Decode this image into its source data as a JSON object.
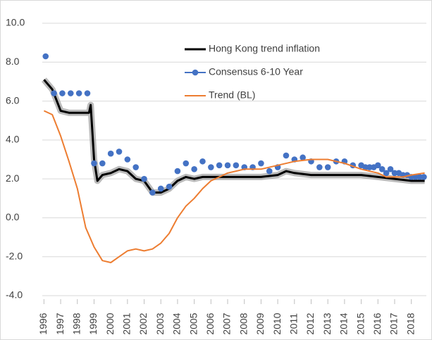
{
  "chart_data": {
    "type": "line",
    "xlim": [
      1995.9,
      2018.9
    ],
    "xticks": [
      1996,
      1997,
      1998,
      1999,
      2000,
      2001,
      2002,
      2003,
      2004,
      2005,
      2006,
      2007,
      2008,
      2009,
      2010,
      2011,
      2012,
      2013,
      2014,
      2015,
      2016,
      2017,
      2018
    ],
    "ylim": [
      -4,
      10
    ],
    "yticks": [
      {
        "value": 10,
        "label": "10.0"
      },
      {
        "value": 8,
        "label": "8.0"
      },
      {
        "value": 6,
        "label": "6.0"
      },
      {
        "value": 4,
        "label": "4.0"
      },
      {
        "value": 2,
        "label": "2.0"
      },
      {
        "value": 0,
        "label": "0.0"
      },
      {
        "value": -2,
        "label": "-2.0"
      },
      {
        "value": -4,
        "label": "-4.0"
      }
    ],
    "grid": true,
    "legend": "top",
    "series": [
      {
        "name": "Hong Kong trend inflation",
        "color": "#000000",
        "band": "#aaaaaa",
        "mode": "line",
        "x": [
          1996,
          1996.5,
          1997,
          1997.5,
          1998,
          1998.7,
          1998.8,
          1999,
          1999.2,
          1999.5,
          2000,
          2000.5,
          2001,
          2001.5,
          2002,
          2002.5,
          2003,
          2003.5,
          2004,
          2004.5,
          2005,
          2005.5,
          2006,
          2007,
          2008,
          2009,
          2010,
          2010.5,
          2011,
          2012,
          2013,
          2014,
          2015,
          2016,
          2017,
          2018,
          2018.8
        ],
        "values": [
          7.1,
          6.6,
          5.5,
          5.4,
          5.4,
          5.4,
          5.8,
          3.0,
          1.9,
          2.2,
          2.3,
          2.5,
          2.4,
          2.0,
          1.9,
          1.3,
          1.3,
          1.5,
          1.9,
          2.1,
          2.0,
          2.1,
          2.1,
          2.1,
          2.1,
          2.1,
          2.2,
          2.4,
          2.3,
          2.2,
          2.2,
          2.2,
          2.2,
          2.1,
          2.0,
          1.9,
          1.9
        ]
      },
      {
        "name": "Consensus 6-10 Year",
        "color": "#4472c4",
        "mode": "markers",
        "x": [
          1996.1,
          1996.6,
          1997.1,
          1997.6,
          1998.1,
          1998.6,
          1999,
          1999.5,
          2000,
          2000.5,
          2001,
          2001.5,
          2002,
          2002.5,
          2003,
          2003.5,
          2004,
          2004.5,
          2005,
          2005.5,
          2006,
          2006.5,
          2007,
          2007.5,
          2008,
          2008.5,
          2009,
          2009.5,
          2010,
          2010.5,
          2011,
          2011.5,
          2012,
          2012.5,
          2013,
          2013.5,
          2014,
          2014.5,
          2015,
          2015.25,
          2015.5,
          2015.75,
          2016,
          2016.25,
          2016.5,
          2016.75,
          2017,
          2017.25,
          2017.5,
          2017.75,
          2018,
          2018.25,
          2018.5,
          2018.75
        ],
        "values": [
          8.3,
          6.4,
          6.4,
          6.4,
          6.4,
          6.4,
          2.8,
          2.8,
          3.3,
          3.4,
          3.0,
          2.6,
          2.0,
          1.3,
          1.5,
          1.6,
          2.4,
          2.8,
          2.5,
          2.9,
          2.6,
          2.7,
          2.7,
          2.7,
          2.6,
          2.6,
          2.8,
          2.4,
          2.6,
          3.2,
          3.0,
          3.1,
          2.9,
          2.6,
          2.6,
          2.9,
          2.9,
          2.7,
          2.7,
          2.6,
          2.6,
          2.6,
          2.7,
          2.5,
          2.3,
          2.5,
          2.3,
          2.3,
          2.2,
          2.2,
          2.1,
          2.1,
          2.1,
          2.1
        ]
      },
      {
        "name": "Trend (BL)",
        "color": "#ed7d31",
        "mode": "line",
        "x": [
          1996,
          1996.5,
          1997,
          1997.5,
          1998,
          1998.5,
          1999,
          1999.5,
          2000,
          2000.5,
          2001,
          2001.5,
          2002,
          2002.5,
          2003,
          2003.5,
          2004,
          2004.5,
          2005,
          2005.5,
          2006,
          2006.5,
          2007,
          2007.5,
          2008,
          2009,
          2010,
          2011,
          2012,
          2013,
          2013.5,
          2014,
          2015,
          2015.5,
          2016,
          2016.5,
          2017,
          2017.5,
          2018,
          2018.8
        ],
        "values": [
          5.5,
          5.3,
          4.2,
          2.9,
          1.5,
          -0.5,
          -1.5,
          -2.2,
          -2.3,
          -2.0,
          -1.7,
          -1.6,
          -1.7,
          -1.6,
          -1.3,
          -0.8,
          0.0,
          0.6,
          1.0,
          1.5,
          1.9,
          2.1,
          2.3,
          2.4,
          2.5,
          2.5,
          2.7,
          2.9,
          3.0,
          3.0,
          2.9,
          2.8,
          2.5,
          2.4,
          2.3,
          2.1,
          2.1,
          2.1,
          2.2,
          2.3
        ]
      }
    ]
  }
}
